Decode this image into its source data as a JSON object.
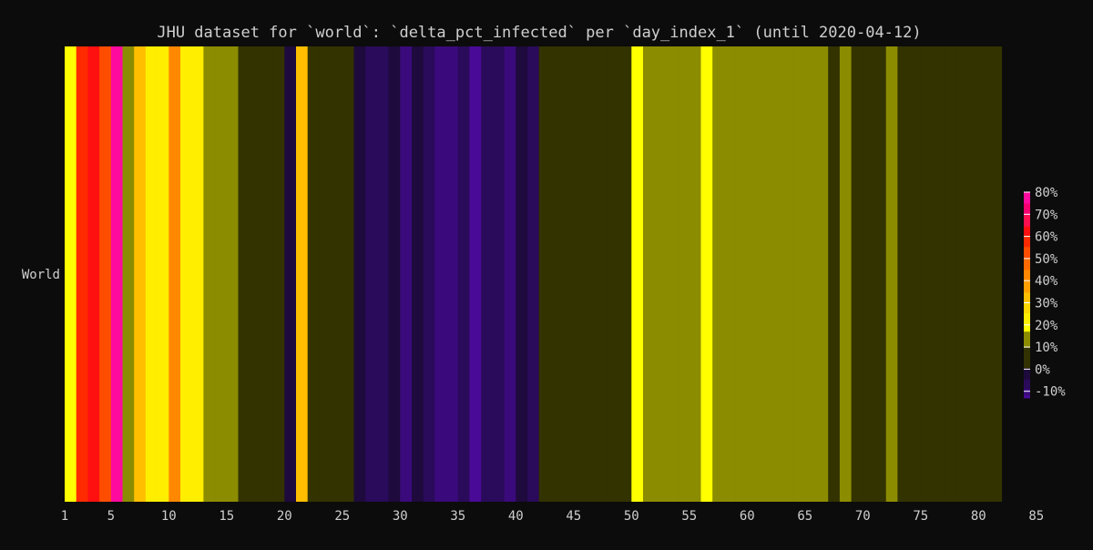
{
  "chart_data": {
    "type": "heatmap",
    "title": "JHU dataset for `world`: `delta_pct_infected` per `day_index_1` (until 2020-04-12)",
    "xlabel": "",
    "ylabel": "",
    "rows": [
      "World"
    ],
    "x_range": [
      1,
      85
    ],
    "x_ticks": [
      1,
      5,
      10,
      15,
      20,
      25,
      30,
      35,
      40,
      45,
      50,
      55,
      60,
      65,
      70,
      75,
      80,
      85
    ],
    "x_start": 1,
    "values": [
      18,
      55,
      60,
      50,
      78,
      15,
      30,
      22,
      22,
      44,
      22,
      22,
      15,
      15,
      15,
      4,
      4,
      4,
      4,
      -3,
      33,
      4,
      4,
      4,
      4,
      -3,
      -7,
      -7,
      -3,
      -10,
      -3,
      -7,
      -10,
      -10,
      -7,
      -13,
      -7,
      -7,
      -10,
      -3,
      -7,
      4,
      4,
      4,
      4,
      4,
      4,
      4,
      4,
      18,
      15,
      15,
      15,
      15,
      15,
      18,
      15,
      15,
      15,
      15,
      15,
      15,
      15,
      15,
      15,
      15,
      4,
      15,
      4,
      4,
      4,
      15,
      4,
      4,
      4,
      4,
      4,
      4,
      4,
      4,
      4
    ],
    "colorbar": {
      "ticks": [
        80,
        70,
        60,
        50,
        40,
        30,
        20,
        10,
        0,
        -10
      ],
      "tick_labels": [
        "80%",
        "70%",
        "60%",
        "50%",
        "40%",
        "30%",
        "20%",
        "10%",
        "0%",
        "-10%"
      ],
      "range": [
        -13,
        80
      ],
      "bins": [
        {
          "min": 75,
          "max": 80,
          "color": "#ff0a9e"
        },
        {
          "min": 70,
          "max": 75,
          "color": "#f50070"
        },
        {
          "min": 65,
          "max": 70,
          "color": "#ff0f50"
        },
        {
          "min": 60,
          "max": 65,
          "color": "#ff1010"
        },
        {
          "min": 55,
          "max": 60,
          "color": "#ff2a00"
        },
        {
          "min": 50,
          "max": 55,
          "color": "#ff4d00"
        },
        {
          "min": 45,
          "max": 50,
          "color": "#ff6a00"
        },
        {
          "min": 40,
          "max": 45,
          "color": "#ff8800"
        },
        {
          "min": 35,
          "max": 40,
          "color": "#ffa000"
        },
        {
          "min": 30,
          "max": 35,
          "color": "#ffbf00"
        },
        {
          "min": 25,
          "max": 30,
          "color": "#ffd800"
        },
        {
          "min": 20,
          "max": 25,
          "color": "#ffee00"
        },
        {
          "min": 17,
          "max": 20,
          "color": "#ffff00"
        },
        {
          "min": 10,
          "max": 17,
          "color": "#8c8c00"
        },
        {
          "min": 0,
          "max": 10,
          "color": "#333300"
        },
        {
          "min": -5,
          "max": 0,
          "color": "#1e0a3c"
        },
        {
          "min": -9,
          "max": -5,
          "color": "#2a0a5a"
        },
        {
          "min": -12,
          "max": -9,
          "color": "#3a0a7c"
        },
        {
          "min": -15,
          "max": -12,
          "color": "#4a0a98"
        }
      ]
    }
  }
}
